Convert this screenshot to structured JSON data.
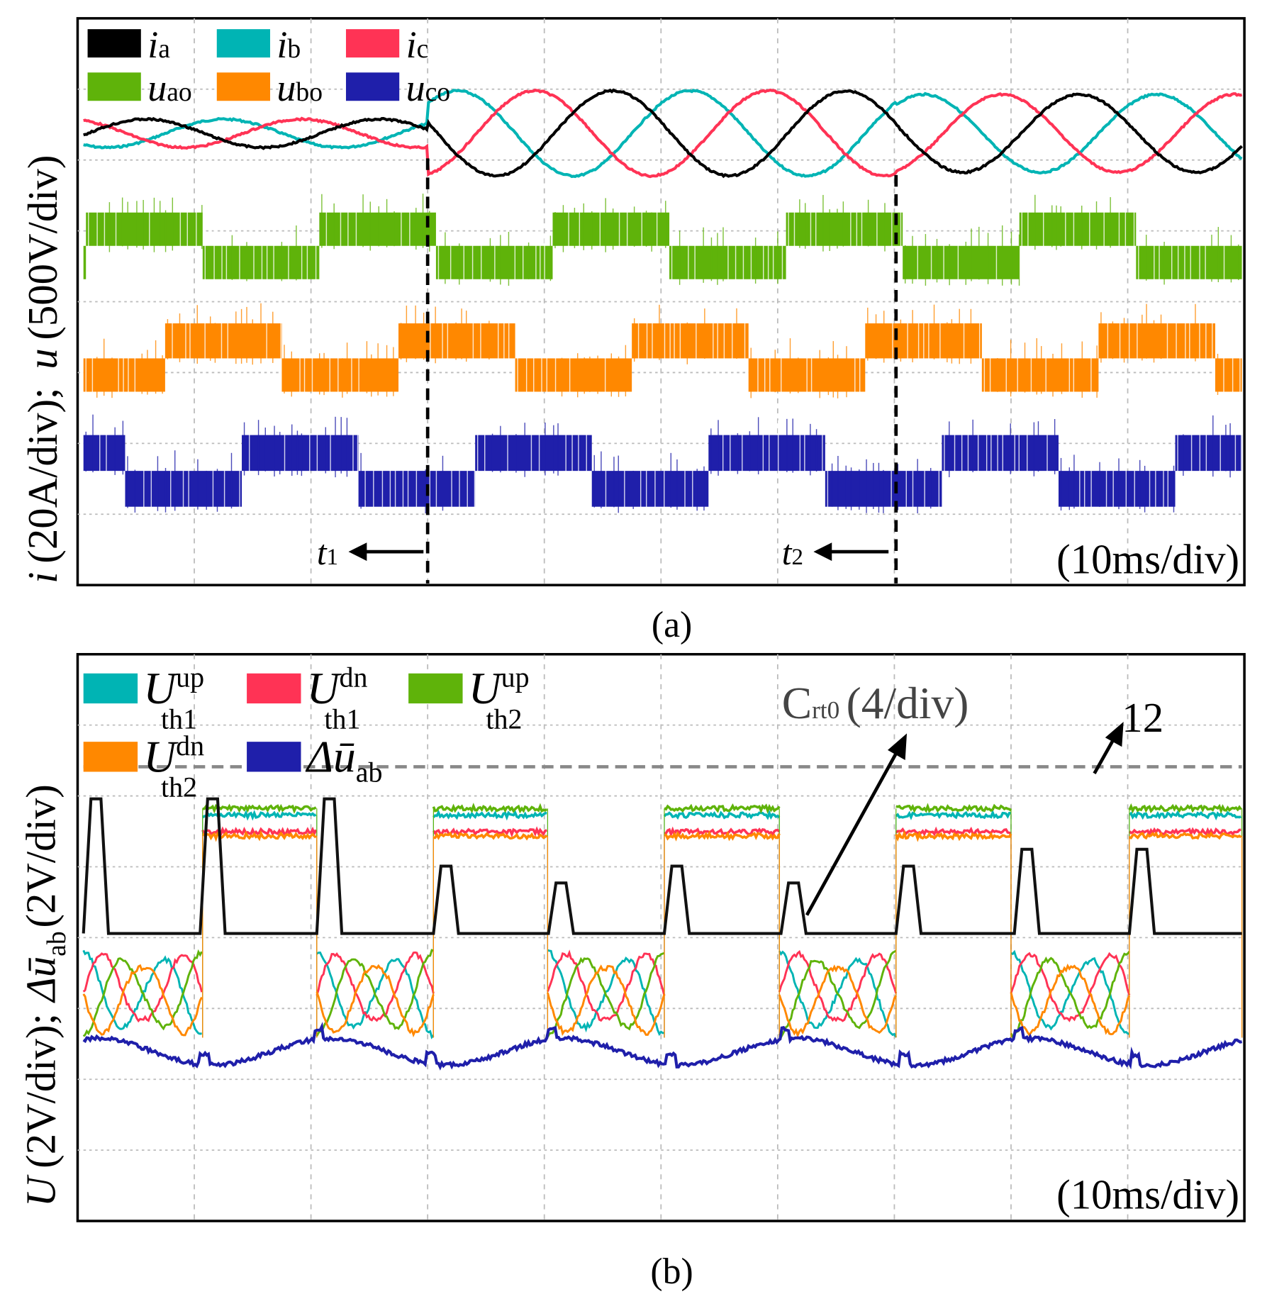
{
  "chart_data": [
    {
      "type": "line",
      "panel_caption": "(a)",
      "ylabel_i": "i",
      "ylabel_i_scale": "(20A/div);",
      "ylabel_u": "u",
      "ylabel_u_scale": "(500V/div)",
      "time_scale": "(10ms/div)",
      "x_divisions": 10,
      "y_divisions": 8,
      "fundamental_period_ms": 20,
      "legend": [
        {
          "sym": "i",
          "sub": "a",
          "color": "#000000"
        },
        {
          "sym": "i",
          "sub": "b",
          "color": "#00b4b4"
        },
        {
          "sym": "i",
          "sub": "c",
          "color": "#ff3355"
        },
        {
          "sym": "u",
          "sub": "ao",
          "color": "#5fb30a"
        },
        {
          "sym": "u",
          "sub": "bo",
          "color": "#ff8800"
        },
        {
          "sym": "u",
          "sub": "co",
          "color": "#1f1faa"
        }
      ],
      "events": [
        {
          "label": "t",
          "sub": "1",
          "time_div": 3.0
        },
        {
          "label": "t",
          "sub": "2",
          "time_div": 7.0
        }
      ],
      "current_amplitude_div": {
        "before_t1": 0.2,
        "t1_to_t2": 0.6,
        "after_t2": 0.55
      }
    },
    {
      "type": "line",
      "panel_caption": "(b)",
      "ylabel_U": "U",
      "ylabel_U_scale": "(2V/div);",
      "ylabel_du": "Δū",
      "ylabel_du_sub": "ab",
      "ylabel_du_scale": "(2V/div)",
      "time_scale": "(10ms/div)",
      "legend": [
        {
          "sym": "U",
          "sup": "up",
          "sub": "th1",
          "color": "#00b4b4"
        },
        {
          "sym": "U",
          "sup": "dn",
          "sub": "th1",
          "color": "#ff3355"
        },
        {
          "sym": "U",
          "sup": "up",
          "sub": "th2",
          "color": "#5fb30a"
        },
        {
          "sym": "U",
          "sup": "dn",
          "sub": "th2",
          "color": "#ff8800"
        },
        {
          "sym": "Δū",
          "sub": "ab",
          "color": "#1f1faa"
        }
      ],
      "annotation_crt0": {
        "sym": "C",
        "sub": "rt0",
        "scale": "(4/div)"
      },
      "annotation_level": "12",
      "crt0_pulse_peaks": [
        12,
        12,
        12,
        8,
        7,
        8,
        7,
        8,
        9,
        9
      ]
    }
  ]
}
